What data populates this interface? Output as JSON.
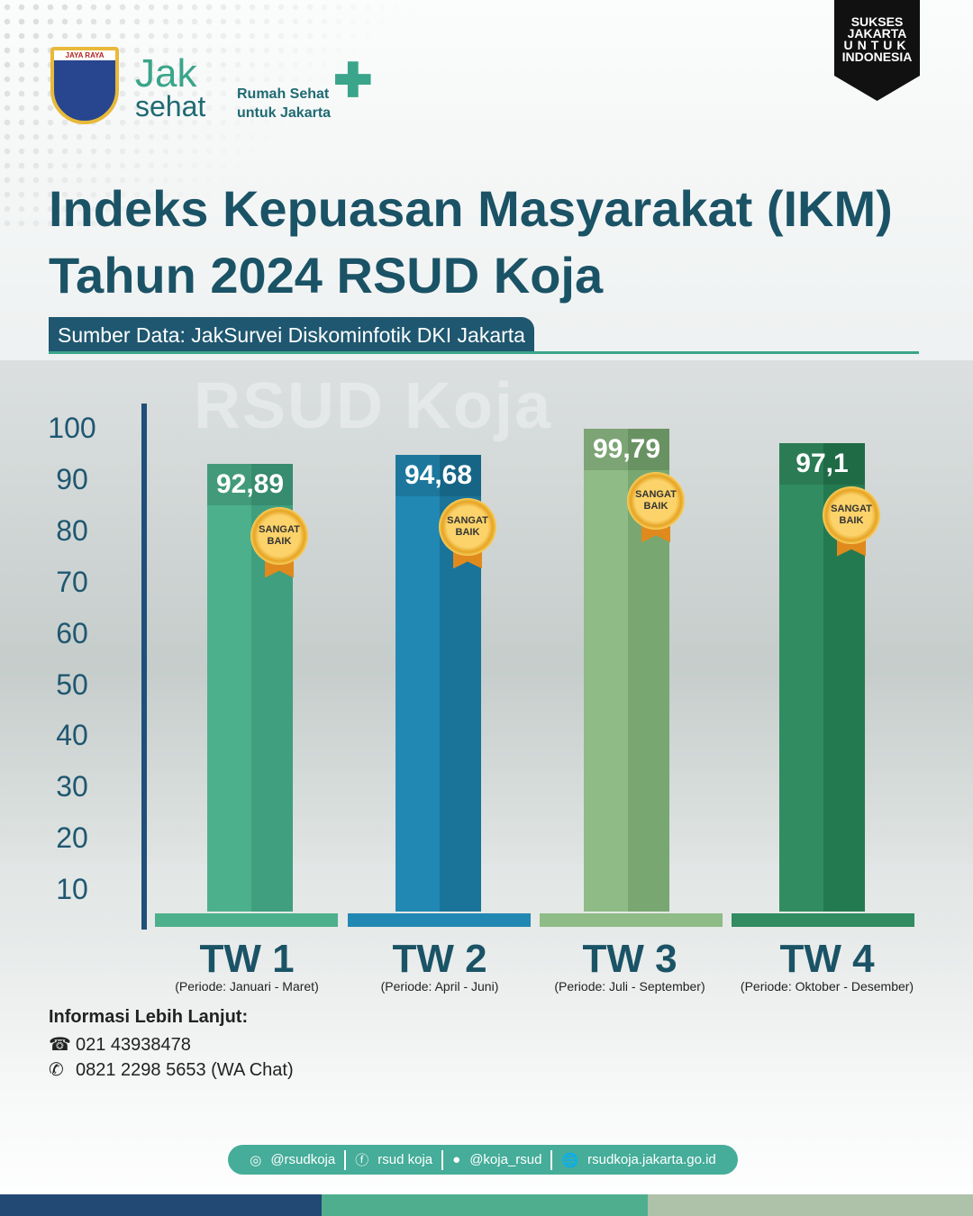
{
  "header": {
    "crest_text": "JAYA RAYA",
    "logo_jak": "Jak",
    "logo_sehat": "sehat",
    "tagline_1": "Rumah Sehat",
    "tagline_2": "untuk Jakarta",
    "badge_lines": [
      "SUKSES",
      "JAKARTA",
      "UNTUK",
      "INDONESIA"
    ]
  },
  "title_line_1": "Indeks Kepuasan Masyarakat (IKM)",
  "title_line_2": "Tahun 2024 RSUD Koja",
  "source": "Sumber Data: JakSurvei Diskominfotik DKI Jakarta",
  "watermark": "RSUD Koja",
  "chart_data": {
    "type": "bar",
    "title": "Indeks Kepuasan Masyarakat (IKM) Tahun 2024 RSUD Koja",
    "categories": [
      "TW 1",
      "TW 2",
      "TW 3",
      "TW 4"
    ],
    "periods": [
      "(Periode: Januari - Maret)",
      "(Periode: April - Juni)",
      "(Periode: Juli - September)",
      "(Periode: Oktober - Desember)"
    ],
    "values": [
      92.89,
      94.68,
      99.79,
      97.1
    ],
    "value_labels": [
      "92,89",
      "94,68",
      "99,79",
      "97,1"
    ],
    "badge": [
      "SANGAT",
      "BAIK"
    ],
    "yticks": [
      100,
      90,
      80,
      70,
      60,
      50,
      40,
      30,
      20,
      10
    ],
    "ylim": [
      0,
      100
    ],
    "colors": [
      [
        "#4db08c",
        "#3f9f7e"
      ],
      [
        "#2188b3",
        "#1a7399"
      ],
      [
        "#8fbb86",
        "#78a771"
      ],
      [
        "#318c61",
        "#247a50"
      ]
    ],
    "grid": false
  },
  "footer": {
    "info_title": "Informasi Lebih Lanjut:",
    "phone": "021 43938478",
    "wa": "0821 2298 5653 (WA Chat)",
    "social": [
      "@rsudkoja",
      "rsud koja",
      "@koja_rsud",
      "rsudkoja.jakarta.go.id"
    ]
  }
}
